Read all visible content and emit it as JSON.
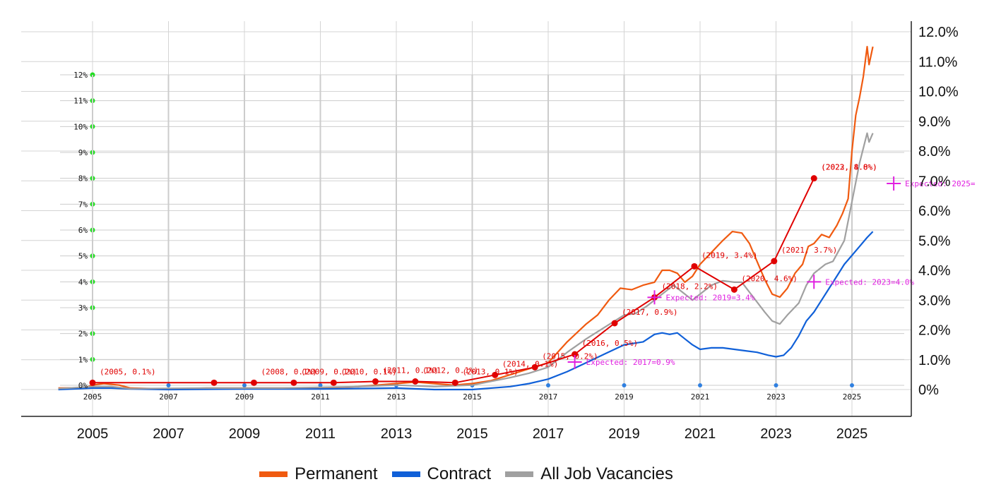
{
  "colors": {
    "permanent": "#f05a10",
    "contract": "#1060d8",
    "all": "#a0a0a0",
    "overlay": "#e00000",
    "green": "#22dd22",
    "expected": "#e020e0"
  },
  "legend": [
    {
      "label": "Permanent",
      "color": "#f05a10"
    },
    {
      "label": "Contract",
      "color": "#1060d8"
    },
    {
      "label": "All Job Vacancies",
      "color": "#a0a0a0"
    }
  ],
  "chart_data": [
    {
      "type": "line",
      "title": "",
      "xlabel": "",
      "ylabel": "",
      "xlim": [
        2004.1,
        2025.8
      ],
      "ylim": [
        0,
        12
      ],
      "x_ticks": [
        "2005",
        "2007",
        "2009",
        "2011",
        "2013",
        "2015",
        "2017",
        "2019",
        "2021",
        "2023",
        "2025"
      ],
      "y_ticks": [
        "0%",
        "1.0%",
        "2.0%",
        "3.0%",
        "4.0%",
        "5.0%",
        "6.0%",
        "7.0%",
        "8.0%",
        "9.0%",
        "10.0%",
        "11.0%",
        "12.0%"
      ],
      "grid": true,
      "legend_position": "bottom",
      "series": [
        {
          "name": "Permanent",
          "color": "#f05a10",
          "points": [
            [
              2004.1,
              0.05
            ],
            [
              2004.8,
              0.06
            ],
            [
              2005.0,
              0.15
            ],
            [
              2005.3,
              0.2
            ],
            [
              2005.7,
              0.15
            ],
            [
              2006.0,
              0.05
            ],
            [
              2007.0,
              0.02
            ],
            [
              2008.0,
              0.05
            ],
            [
              2009.0,
              0.05
            ],
            [
              2010.0,
              0.05
            ],
            [
              2011.0,
              0.05
            ],
            [
              2012.0,
              0.1
            ],
            [
              2013.0,
              0.2
            ],
            [
              2013.5,
              0.25
            ],
            [
              2014.0,
              0.2
            ],
            [
              2014.5,
              0.15
            ],
            [
              2015.0,
              0.2
            ],
            [
              2015.5,
              0.3
            ],
            [
              2016.0,
              0.5
            ],
            [
              2016.5,
              0.7
            ],
            [
              2017.0,
              0.9
            ],
            [
              2017.5,
              1.6
            ],
            [
              2018.0,
              2.2
            ],
            [
              2018.3,
              2.5
            ],
            [
              2018.6,
              3.0
            ],
            [
              2018.9,
              3.4
            ],
            [
              2019.2,
              3.35
            ],
            [
              2019.5,
              3.5
            ],
            [
              2019.8,
              3.6
            ],
            [
              2020.0,
              4.0
            ],
            [
              2020.2,
              4.0
            ],
            [
              2020.4,
              3.9
            ],
            [
              2020.6,
              3.6
            ],
            [
              2020.8,
              3.8
            ],
            [
              2021.0,
              4.2
            ],
            [
              2021.3,
              4.6
            ],
            [
              2021.6,
              5.0
            ],
            [
              2021.85,
              5.3
            ],
            [
              2022.1,
              5.25
            ],
            [
              2022.3,
              4.9
            ],
            [
              2022.5,
              4.3
            ],
            [
              2022.7,
              3.7
            ],
            [
              2022.9,
              3.2
            ],
            [
              2023.1,
              3.1
            ],
            [
              2023.3,
              3.4
            ],
            [
              2023.5,
              3.9
            ],
            [
              2023.7,
              4.2
            ],
            [
              2023.85,
              4.8
            ],
            [
              2024.0,
              4.9
            ],
            [
              2024.2,
              5.2
            ],
            [
              2024.4,
              5.1
            ],
            [
              2024.6,
              5.5
            ],
            [
              2024.75,
              5.9
            ],
            [
              2024.9,
              6.4
            ],
            [
              2025.0,
              8.0
            ],
            [
              2025.1,
              9.2
            ],
            [
              2025.2,
              9.8
            ],
            [
              2025.3,
              10.5
            ],
            [
              2025.4,
              11.5
            ],
            [
              2025.45,
              10.9
            ],
            [
              2025.55,
              11.5
            ]
          ]
        },
        {
          "name": "Contract",
          "color": "#1060d8",
          "points": [
            [
              2004.1,
              0.0
            ],
            [
              2005.0,
              0.05
            ],
            [
              2005.5,
              0.05
            ],
            [
              2006.0,
              0.02
            ],
            [
              2007.0,
              0.0
            ],
            [
              2009.0,
              0.02
            ],
            [
              2011.0,
              0.02
            ],
            [
              2013.0,
              0.05
            ],
            [
              2014.0,
              0.0
            ],
            [
              2015.0,
              0.0
            ],
            [
              2016.0,
              0.1
            ],
            [
              2016.5,
              0.2
            ],
            [
              2017.0,
              0.35
            ],
            [
              2017.5,
              0.6
            ],
            [
              2018.0,
              0.9
            ],
            [
              2018.5,
              1.2
            ],
            [
              2019.0,
              1.5
            ],
            [
              2019.5,
              1.6
            ],
            [
              2019.8,
              1.85
            ],
            [
              2020.0,
              1.9
            ],
            [
              2020.2,
              1.85
            ],
            [
              2020.4,
              1.9
            ],
            [
              2020.6,
              1.7
            ],
            [
              2020.8,
              1.5
            ],
            [
              2021.0,
              1.35
            ],
            [
              2021.3,
              1.4
            ],
            [
              2021.6,
              1.4
            ],
            [
              2021.9,
              1.35
            ],
            [
              2022.2,
              1.3
            ],
            [
              2022.5,
              1.25
            ],
            [
              2022.8,
              1.15
            ],
            [
              2023.0,
              1.1
            ],
            [
              2023.2,
              1.15
            ],
            [
              2023.4,
              1.4
            ],
            [
              2023.6,
              1.8
            ],
            [
              2023.8,
              2.3
            ],
            [
              2024.0,
              2.6
            ],
            [
              2024.2,
              3.0
            ],
            [
              2024.4,
              3.4
            ],
            [
              2024.6,
              3.8
            ],
            [
              2024.8,
              4.2
            ],
            [
              2025.0,
              4.5
            ],
            [
              2025.2,
              4.8
            ],
            [
              2025.4,
              5.1
            ],
            [
              2025.55,
              5.3
            ]
          ]
        },
        {
          "name": "All Job Vacancies",
          "color": "#a0a0a0",
          "points": [
            [
              2004.1,
              0.03
            ],
            [
              2005.0,
              0.1
            ],
            [
              2005.5,
              0.1
            ],
            [
              2006.0,
              0.03
            ],
            [
              2008.0,
              0.05
            ],
            [
              2010.0,
              0.05
            ],
            [
              2012.0,
              0.1
            ],
            [
              2013.0,
              0.15
            ],
            [
              2014.0,
              0.1
            ],
            [
              2015.0,
              0.15
            ],
            [
              2016.0,
              0.4
            ],
            [
              2016.5,
              0.55
            ],
            [
              2017.0,
              0.75
            ],
            [
              2017.5,
              1.25
            ],
            [
              2018.0,
              1.7
            ],
            [
              2018.5,
              2.1
            ],
            [
              2019.0,
              2.5
            ],
            [
              2019.3,
              2.55
            ],
            [
              2019.6,
              2.8
            ],
            [
              2020.0,
              3.2
            ],
            [
              2020.3,
              3.5
            ],
            [
              2020.6,
              3.2
            ],
            [
              2020.8,
              3.0
            ],
            [
              2021.0,
              3.2
            ],
            [
              2021.3,
              3.5
            ],
            [
              2021.6,
              3.65
            ],
            [
              2021.9,
              3.6
            ],
            [
              2022.1,
              3.6
            ],
            [
              2022.4,
              3.1
            ],
            [
              2022.7,
              2.6
            ],
            [
              2022.9,
              2.3
            ],
            [
              2023.1,
              2.2
            ],
            [
              2023.3,
              2.5
            ],
            [
              2023.6,
              2.9
            ],
            [
              2023.8,
              3.5
            ],
            [
              2024.0,
              3.9
            ],
            [
              2024.3,
              4.2
            ],
            [
              2024.5,
              4.3
            ],
            [
              2024.8,
              5.0
            ],
            [
              2025.0,
              6.3
            ],
            [
              2025.2,
              7.6
            ],
            [
              2025.4,
              8.6
            ],
            [
              2025.45,
              8.3
            ],
            [
              2025.55,
              8.6
            ]
          ]
        }
      ]
    },
    {
      "type": "line",
      "title": "",
      "xlabel": "",
      "ylabel": "",
      "xlim": [
        2004.1,
        2025.8
      ],
      "ylim": [
        0,
        12
      ],
      "x_ticks": [
        "2005",
        "2007",
        "2009",
        "2011",
        "2013",
        "2015",
        "2017",
        "2019",
        "2021",
        "2023",
        "2025"
      ],
      "y_ticks": [
        "0%",
        "1%",
        "2%",
        "3%",
        "4%",
        "5%",
        "6%",
        "7%",
        "8%",
        "9%",
        "10%",
        "11%",
        "12%"
      ],
      "series": [
        {
          "name": "",
          "color": "#e00000",
          "points": [
            {
              "x": 2005.0,
              "y": 0.1,
              "label": "(2005, 0.1%)"
            },
            {
              "x": 2008.2,
              "y": 0.1,
              "label": ""
            },
            {
              "x": 2009.25,
              "y": 0.1,
              "label": "(2008, 0.1%)"
            },
            {
              "x": 2010.3,
              "y": 0.1,
              "label": "(2009, 0.1%)"
            },
            {
              "x": 2011.35,
              "y": 0.1,
              "label": "(2010, 0.1%)"
            },
            {
              "x": 2012.45,
              "y": 0.15,
              "label": "(2011, 0.1%)"
            },
            {
              "x": 2013.5,
              "y": 0.15,
              "label": "(2012, 0.1%)"
            },
            {
              "x": 2014.55,
              "y": 0.1,
              "label": "(2013, 0.1%)"
            },
            {
              "x": 2015.6,
              "y": 0.4,
              "label": "(2014, 0.1%)"
            },
            {
              "x": 2016.65,
              "y": 0.7,
              "label": "(2015, 0.2%)"
            },
            {
              "x": 2017.7,
              "y": 1.2,
              "label": "(2016, 0.5%)"
            },
            {
              "x": 2018.75,
              "y": 2.4,
              "label": "(2017, 0.9%)"
            },
            {
              "x": 2019.8,
              "y": 3.4,
              "label": "(2018, 2.2%)"
            },
            {
              "x": 2020.85,
              "y": 4.6,
              "label": "(2019, 3.4%)"
            },
            {
              "x": 2021.9,
              "y": 3.7,
              "label": "(2020, 4.6%)"
            },
            {
              "x": 2022.95,
              "y": 4.8,
              "label": "(2021, 3.7%)"
            },
            {
              "x": 2024.0,
              "y": 8.0,
              "label": "(2022, 4.8%)"
            }
          ],
          "extra_labels": [
            {
              "x": 2024.0,
              "y": 8.0,
              "label": "(2023, 8.0%)"
            }
          ]
        }
      ],
      "expected": [
        {
          "x": 2017.7,
          "y": 0.9,
          "label": "Expected: 2017=0.9%"
        },
        {
          "x": 2019.8,
          "y": 3.4,
          "label": "Expected: 2019=3.4%"
        },
        {
          "x": 2024.0,
          "y": 4.0,
          "label": "Expected: 2023=4.0%"
        },
        {
          "x": 2026.1,
          "y": 7.8,
          "label": "Expected: 2025="
        }
      ]
    }
  ]
}
